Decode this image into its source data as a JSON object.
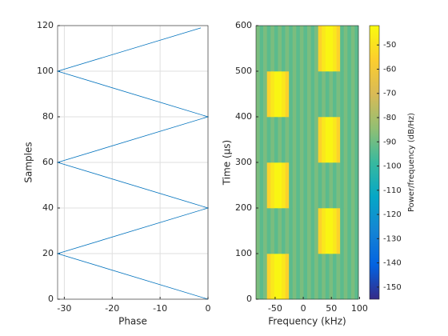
{
  "chart_data": [
    {
      "type": "line",
      "xlabel": "Phase",
      "ylabel": "Samples",
      "xlim": [
        -31.4,
        0
      ],
      "xticks": [
        -30,
        -20,
        -10,
        0
      ],
      "ylim": [
        0,
        120
      ],
      "yticks": [
        0,
        20,
        40,
        60,
        80,
        100,
        120
      ],
      "grid": true,
      "series": [
        {
          "color": "#0072bd",
          "x": [
            0,
            -31.4,
            0,
            -31.4,
            0,
            -31.4,
            -1.5
          ],
          "values": [
            0,
            20,
            40,
            60,
            80,
            100,
            119
          ]
        }
      ]
    },
    {
      "type": "spectrogram",
      "xlabel": "Frequency (kHz)",
      "ylabel": "Time (μs)",
      "xlim": [
        -84,
        98
      ],
      "xticks": [
        -50,
        0,
        50,
        100
      ],
      "ylim": [
        0,
        600
      ],
      "yticks": [
        0,
        100,
        200,
        300,
        400,
        500,
        600
      ],
      "colormap": "parula",
      "clim": [
        -155,
        -42
      ],
      "colorbar_label": "Power/frequency (dB/Hz)",
      "colorbar_ticks": [
        -150,
        -140,
        -130,
        -120,
        -110,
        -100,
        -90,
        -80,
        -70,
        -60,
        -50
      ],
      "xbins": [
        -84,
        -77.5,
        -71,
        -64.5,
        -58,
        -51.5,
        -45,
        -38.5,
        -32,
        -25.5,
        -19,
        -12.5,
        -6,
        0.5,
        7,
        13.5,
        20,
        26.5,
        33,
        39.5,
        46,
        52.5,
        59,
        65.5,
        72,
        78.5,
        85,
        91.5,
        98
      ],
      "ybins": [
        0,
        100,
        200,
        300,
        400,
        500,
        600
      ],
      "z": [
        [
          -88,
          -93,
          -88,
          -55,
          -48,
          -44,
          -44,
          -48,
          -55,
          -93,
          -88,
          -93,
          -88,
          -93,
          -88,
          -93,
          -88,
          -93,
          -88,
          -93,
          -88,
          -93,
          -88,
          -93,
          -88,
          -93,
          -88,
          -93
        ],
        [
          -88,
          -93,
          -88,
          -93,
          -88,
          -93,
          -88,
          -93,
          -88,
          -93,
          -88,
          -93,
          -88,
          -93,
          -88,
          -93,
          -88,
          -55,
          -48,
          -44,
          -44,
          -48,
          -55,
          -93,
          -88,
          -93,
          -88,
          -93
        ],
        [
          -88,
          -93,
          -88,
          -55,
          -48,
          -44,
          -44,
          -48,
          -55,
          -93,
          -88,
          -93,
          -88,
          -93,
          -88,
          -93,
          -88,
          -93,
          -88,
          -93,
          -88,
          -93,
          -88,
          -93,
          -88,
          -93,
          -88,
          -93
        ],
        [
          -88,
          -93,
          -88,
          -93,
          -88,
          -93,
          -88,
          -93,
          -88,
          -93,
          -88,
          -93,
          -88,
          -93,
          -88,
          -93,
          -88,
          -55,
          -48,
          -44,
          -44,
          -48,
          -55,
          -93,
          -88,
          -93,
          -88,
          -93
        ],
        [
          -88,
          -93,
          -88,
          -55,
          -48,
          -44,
          -44,
          -48,
          -55,
          -93,
          -88,
          -93,
          -88,
          -93,
          -88,
          -93,
          -88,
          -93,
          -88,
          -93,
          -88,
          -93,
          -88,
          -93,
          -88,
          -93,
          -88,
          -93
        ],
        [
          -88,
          -93,
          -88,
          -93,
          -88,
          -93,
          -88,
          -93,
          -88,
          -93,
          -88,
          -93,
          -88,
          -93,
          -88,
          -93,
          -88,
          -55,
          -48,
          -44,
          -44,
          -48,
          -55,
          -93,
          -88,
          -93,
          -88,
          -93
        ]
      ]
    }
  ]
}
